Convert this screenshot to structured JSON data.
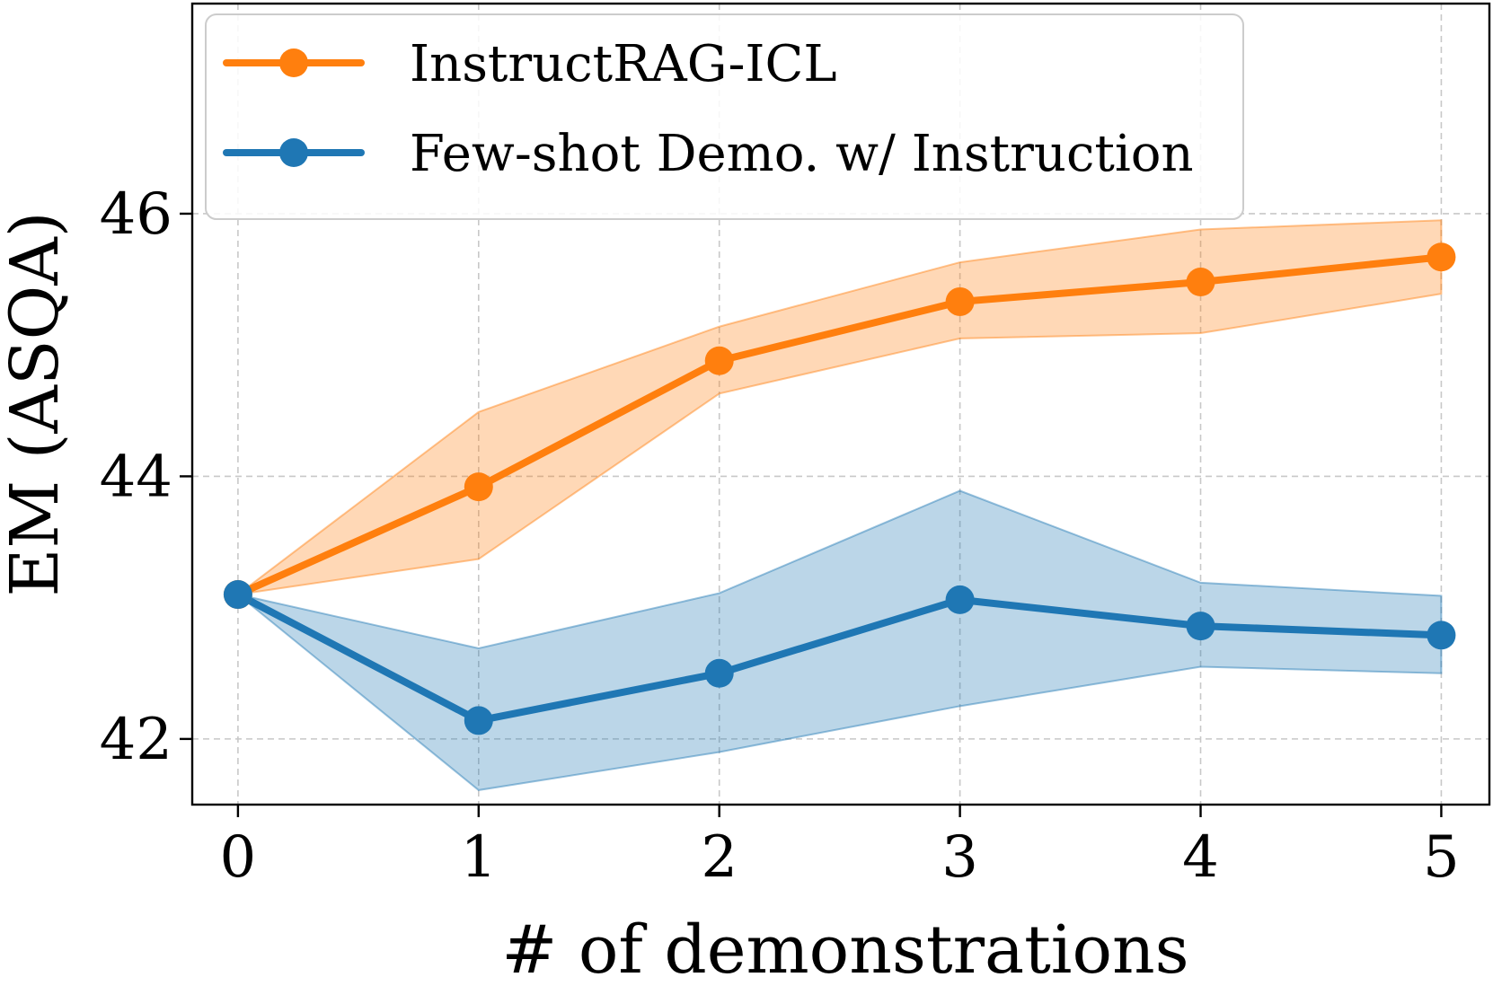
{
  "chart_data": {
    "type": "line",
    "title": "",
    "xlabel": "# of demonstrations",
    "ylabel": "EM (ASQA)",
    "x": [
      0,
      1,
      2,
      3,
      4,
      5
    ],
    "xticks": [
      "0",
      "1",
      "2",
      "3",
      "4",
      "5"
    ],
    "yticks": [
      "42",
      "44",
      "46"
    ],
    "xlim": [
      -0.19,
      5.2
    ],
    "ylim": [
      41.5,
      47.6
    ],
    "grid": true,
    "legend_position": "top-left",
    "series": [
      {
        "name": "InstructRAG-ICL",
        "color": "#ff7f0e",
        "values": [
          43.1,
          43.92,
          44.88,
          45.33,
          45.48,
          45.67
        ],
        "lower": [
          43.1,
          43.37,
          44.63,
          45.05,
          45.09,
          45.39
        ],
        "upper": [
          43.1,
          44.49,
          45.14,
          45.63,
          45.88,
          45.95
        ]
      },
      {
        "name": "Few-shot Demo. w/ Instruction",
        "color": "#1f77b4",
        "values": [
          43.1,
          42.14,
          42.5,
          43.06,
          42.86,
          42.79
        ],
        "lower": [
          43.1,
          41.61,
          41.9,
          42.25,
          42.55,
          42.5
        ],
        "upper": [
          43.1,
          42.69,
          43.11,
          43.89,
          43.19,
          43.09
        ]
      }
    ]
  }
}
